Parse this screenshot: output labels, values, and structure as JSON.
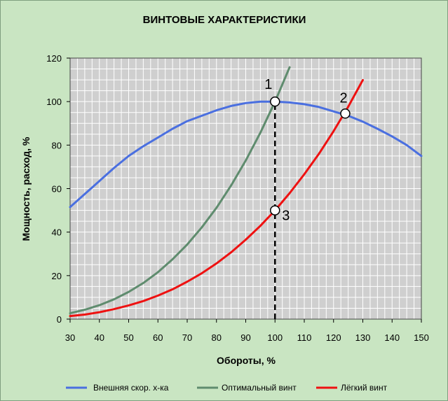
{
  "chart_data": {
    "type": "line",
    "title": "ВИНТОВЫЕ ХАРАКТЕРИСТИКИ",
    "xlabel": "Обороты, %",
    "ylabel": "Мощность, расход, %",
    "xlim": [
      30,
      150
    ],
    "ylim": [
      0,
      120
    ],
    "x_ticks": [
      "30",
      "40",
      "50",
      "60",
      "70",
      "80",
      "90",
      "100",
      "110",
      "120",
      "130",
      "140",
      "150"
    ],
    "y_ticks": [
      "0",
      "20",
      "40",
      "60",
      "80",
      "100",
      "120"
    ],
    "grid": true,
    "legend_position": "bottom",
    "colors": {
      "background": "#c9e5c2",
      "plot_background": "#cfcfcf",
      "grid": "#ffffff",
      "external": "#4a6fe0",
      "optimal": "#5f8c6e",
      "light": "#ee1111"
    },
    "series": [
      {
        "name": "Внешняя скор. х-ка",
        "x": [
          30,
          35,
          40,
          45,
          50,
          55,
          60,
          65,
          70,
          75,
          80,
          85,
          90,
          95,
          100,
          105,
          110,
          115,
          120,
          125,
          130,
          135,
          140,
          145,
          150
        ],
        "y": [
          51.5,
          57.5,
          63.5,
          69.5,
          75,
          79.5,
          83.5,
          87.5,
          91,
          93.5,
          96,
          98,
          99.3,
          100,
          100,
          99.6,
          98.8,
          97.5,
          95.5,
          93.5,
          90.8,
          87.5,
          84,
          80,
          75
        ]
      },
      {
        "name": "Оптимальный винт",
        "x": [
          30,
          35,
          40,
          45,
          50,
          55,
          60,
          65,
          70,
          75,
          80,
          85,
          90,
          95,
          100,
          105
        ],
        "y": [
          2.7,
          4.3,
          6.4,
          9.1,
          12.5,
          16.6,
          21.6,
          27.5,
          34.3,
          42.2,
          51.2,
          61.4,
          72.9,
          85.7,
          100,
          115.8
        ]
      },
      {
        "name": "Лёгкий винт",
        "x": [
          30,
          35,
          40,
          45,
          50,
          55,
          60,
          65,
          70,
          75,
          80,
          85,
          90,
          95,
          100,
          105,
          110,
          115,
          120,
          125,
          130
        ],
        "y": [
          1.4,
          2.1,
          3.2,
          4.6,
          6.3,
          8.3,
          10.8,
          13.7,
          17.2,
          21.1,
          25.6,
          30.7,
          36.5,
          42.9,
          50,
          57.9,
          66.6,
          76.0,
          86.4,
          97.6,
          109.9
        ]
      }
    ],
    "markers": [
      {
        "label": "1",
        "x": 100,
        "y": 100
      },
      {
        "label": "2",
        "x": 124,
        "y": 94.5
      },
      {
        "label": "3",
        "x": 100,
        "y": 50
      }
    ],
    "reference_line": {
      "x": 100,
      "y_from": 0,
      "y_to": 100,
      "style": "dashed"
    }
  }
}
